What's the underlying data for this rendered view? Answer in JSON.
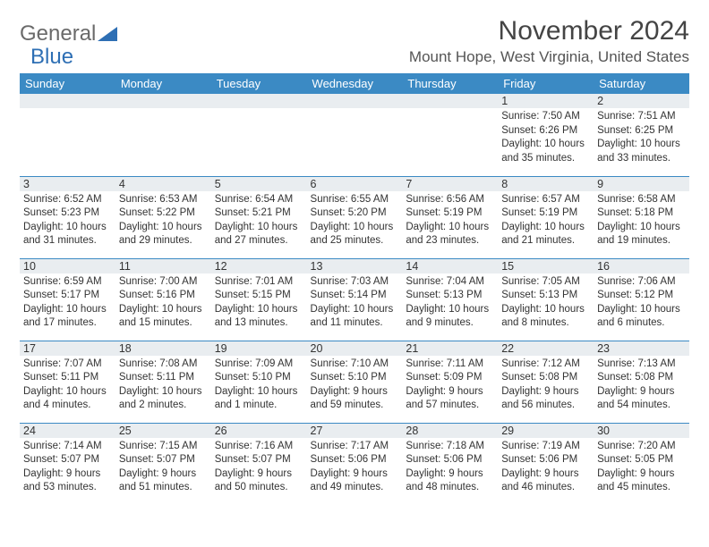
{
  "logo": {
    "part1": "General",
    "part2": "Blue"
  },
  "title": "November 2024",
  "location": "Mount Hope, West Virginia, United States",
  "colors": {
    "header_bg": "#3b8ac4",
    "header_text": "#ffffff",
    "cell_border": "#3b8ac4",
    "daynum_bg": "#e9edf0",
    "text": "#333333",
    "logo_gray": "#6a6a6a",
    "logo_blue": "#2e6fb4"
  },
  "weekdays": [
    "Sunday",
    "Monday",
    "Tuesday",
    "Wednesday",
    "Thursday",
    "Friday",
    "Saturday"
  ],
  "weeks": [
    [
      {
        "day": "",
        "sunrise": "",
        "sunset": "",
        "daylight": ""
      },
      {
        "day": "",
        "sunrise": "",
        "sunset": "",
        "daylight": ""
      },
      {
        "day": "",
        "sunrise": "",
        "sunset": "",
        "daylight": ""
      },
      {
        "day": "",
        "sunrise": "",
        "sunset": "",
        "daylight": ""
      },
      {
        "day": "",
        "sunrise": "",
        "sunset": "",
        "daylight": ""
      },
      {
        "day": "1",
        "sunrise": "Sunrise: 7:50 AM",
        "sunset": "Sunset: 6:26 PM",
        "daylight": "Daylight: 10 hours and 35 minutes."
      },
      {
        "day": "2",
        "sunrise": "Sunrise: 7:51 AM",
        "sunset": "Sunset: 6:25 PM",
        "daylight": "Daylight: 10 hours and 33 minutes."
      }
    ],
    [
      {
        "day": "3",
        "sunrise": "Sunrise: 6:52 AM",
        "sunset": "Sunset: 5:23 PM",
        "daylight": "Daylight: 10 hours and 31 minutes."
      },
      {
        "day": "4",
        "sunrise": "Sunrise: 6:53 AM",
        "sunset": "Sunset: 5:22 PM",
        "daylight": "Daylight: 10 hours and 29 minutes."
      },
      {
        "day": "5",
        "sunrise": "Sunrise: 6:54 AM",
        "sunset": "Sunset: 5:21 PM",
        "daylight": "Daylight: 10 hours and 27 minutes."
      },
      {
        "day": "6",
        "sunrise": "Sunrise: 6:55 AM",
        "sunset": "Sunset: 5:20 PM",
        "daylight": "Daylight: 10 hours and 25 minutes."
      },
      {
        "day": "7",
        "sunrise": "Sunrise: 6:56 AM",
        "sunset": "Sunset: 5:19 PM",
        "daylight": "Daylight: 10 hours and 23 minutes."
      },
      {
        "day": "8",
        "sunrise": "Sunrise: 6:57 AM",
        "sunset": "Sunset: 5:19 PM",
        "daylight": "Daylight: 10 hours and 21 minutes."
      },
      {
        "day": "9",
        "sunrise": "Sunrise: 6:58 AM",
        "sunset": "Sunset: 5:18 PM",
        "daylight": "Daylight: 10 hours and 19 minutes."
      }
    ],
    [
      {
        "day": "10",
        "sunrise": "Sunrise: 6:59 AM",
        "sunset": "Sunset: 5:17 PM",
        "daylight": "Daylight: 10 hours and 17 minutes."
      },
      {
        "day": "11",
        "sunrise": "Sunrise: 7:00 AM",
        "sunset": "Sunset: 5:16 PM",
        "daylight": "Daylight: 10 hours and 15 minutes."
      },
      {
        "day": "12",
        "sunrise": "Sunrise: 7:01 AM",
        "sunset": "Sunset: 5:15 PM",
        "daylight": "Daylight: 10 hours and 13 minutes."
      },
      {
        "day": "13",
        "sunrise": "Sunrise: 7:03 AM",
        "sunset": "Sunset: 5:14 PM",
        "daylight": "Daylight: 10 hours and 11 minutes."
      },
      {
        "day": "14",
        "sunrise": "Sunrise: 7:04 AM",
        "sunset": "Sunset: 5:13 PM",
        "daylight": "Daylight: 10 hours and 9 minutes."
      },
      {
        "day": "15",
        "sunrise": "Sunrise: 7:05 AM",
        "sunset": "Sunset: 5:13 PM",
        "daylight": "Daylight: 10 hours and 8 minutes."
      },
      {
        "day": "16",
        "sunrise": "Sunrise: 7:06 AM",
        "sunset": "Sunset: 5:12 PM",
        "daylight": "Daylight: 10 hours and 6 minutes."
      }
    ],
    [
      {
        "day": "17",
        "sunrise": "Sunrise: 7:07 AM",
        "sunset": "Sunset: 5:11 PM",
        "daylight": "Daylight: 10 hours and 4 minutes."
      },
      {
        "day": "18",
        "sunrise": "Sunrise: 7:08 AM",
        "sunset": "Sunset: 5:11 PM",
        "daylight": "Daylight: 10 hours and 2 minutes."
      },
      {
        "day": "19",
        "sunrise": "Sunrise: 7:09 AM",
        "sunset": "Sunset: 5:10 PM",
        "daylight": "Daylight: 10 hours and 1 minute."
      },
      {
        "day": "20",
        "sunrise": "Sunrise: 7:10 AM",
        "sunset": "Sunset: 5:10 PM",
        "daylight": "Daylight: 9 hours and 59 minutes."
      },
      {
        "day": "21",
        "sunrise": "Sunrise: 7:11 AM",
        "sunset": "Sunset: 5:09 PM",
        "daylight": "Daylight: 9 hours and 57 minutes."
      },
      {
        "day": "22",
        "sunrise": "Sunrise: 7:12 AM",
        "sunset": "Sunset: 5:08 PM",
        "daylight": "Daylight: 9 hours and 56 minutes."
      },
      {
        "day": "23",
        "sunrise": "Sunrise: 7:13 AM",
        "sunset": "Sunset: 5:08 PM",
        "daylight": "Daylight: 9 hours and 54 minutes."
      }
    ],
    [
      {
        "day": "24",
        "sunrise": "Sunrise: 7:14 AM",
        "sunset": "Sunset: 5:07 PM",
        "daylight": "Daylight: 9 hours and 53 minutes."
      },
      {
        "day": "25",
        "sunrise": "Sunrise: 7:15 AM",
        "sunset": "Sunset: 5:07 PM",
        "daylight": "Daylight: 9 hours and 51 minutes."
      },
      {
        "day": "26",
        "sunrise": "Sunrise: 7:16 AM",
        "sunset": "Sunset: 5:07 PM",
        "daylight": "Daylight: 9 hours and 50 minutes."
      },
      {
        "day": "27",
        "sunrise": "Sunrise: 7:17 AM",
        "sunset": "Sunset: 5:06 PM",
        "daylight": "Daylight: 9 hours and 49 minutes."
      },
      {
        "day": "28",
        "sunrise": "Sunrise: 7:18 AM",
        "sunset": "Sunset: 5:06 PM",
        "daylight": "Daylight: 9 hours and 48 minutes."
      },
      {
        "day": "29",
        "sunrise": "Sunrise: 7:19 AM",
        "sunset": "Sunset: 5:06 PM",
        "daylight": "Daylight: 9 hours and 46 minutes."
      },
      {
        "day": "30",
        "sunrise": "Sunrise: 7:20 AM",
        "sunset": "Sunset: 5:05 PM",
        "daylight": "Daylight: 9 hours and 45 minutes."
      }
    ]
  ]
}
